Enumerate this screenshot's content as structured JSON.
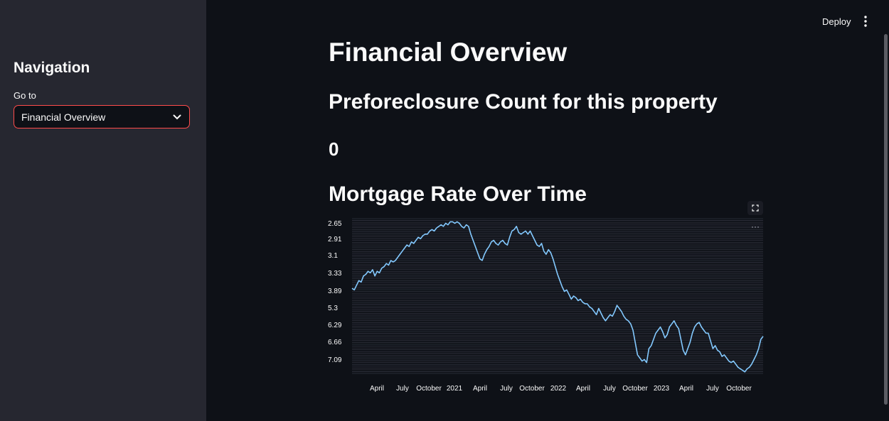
{
  "sidebar": {
    "title": "Navigation",
    "select_label": "Go to",
    "selected_value": "Financial Overview"
  },
  "toolbar": {
    "deploy_label": "Deploy",
    "menu_icon": "kebab-menu-icon"
  },
  "main": {
    "title": "Financial Overview",
    "preforeclosure_heading": "Preforeclosure Count for this property",
    "preforeclosure_count": "0",
    "chart_heading": "Mortgage Rate Over Time"
  },
  "colors": {
    "background": "#0e1117",
    "sidebar": "#262730",
    "accent": "#ff4b4b",
    "line": "#83c9ff"
  },
  "chart_data": {
    "type": "line",
    "title": "",
    "xlabel": "",
    "ylabel": "",
    "y_axis_note": "categorical y axis, top to bottom",
    "y_tick_labels": [
      "2.65",
      "2.91",
      "3.1",
      "3.33",
      "3.89",
      "5.3",
      "6.29",
      "6.66",
      "7.09"
    ],
    "x_tick_labels": [
      "April",
      "July",
      "October",
      "2021",
      "April",
      "July",
      "October",
      "2022",
      "April",
      "July",
      "October",
      "2023",
      "April",
      "July",
      "October"
    ],
    "x_range": [
      "2020-01",
      "2023-12"
    ],
    "grid": true,
    "series": [
      {
        "values": [
          0.45,
          0.46,
          0.43,
          0.4,
          0.41,
          0.37,
          0.36,
          0.34,
          0.35,
          0.33,
          0.37,
          0.34,
          0.35,
          0.32,
          0.31,
          0.29,
          0.3,
          0.27,
          0.28,
          0.27,
          0.25,
          0.23,
          0.21,
          0.19,
          0.17,
          0.18,
          0.15,
          0.16,
          0.14,
          0.12,
          0.13,
          0.11,
          0.1,
          0.1,
          0.08,
          0.07,
          0.08,
          0.06,
          0.05,
          0.04,
          0.05,
          0.03,
          0.04,
          0.02,
          0.02,
          0.03,
          0.02,
          0.03,
          0.05,
          0.06,
          0.04,
          0.05,
          0.1,
          0.14,
          0.18,
          0.22,
          0.26,
          0.27,
          0.23,
          0.2,
          0.18,
          0.15,
          0.14,
          0.16,
          0.17,
          0.15,
          0.14,
          0.16,
          0.17,
          0.12,
          0.08,
          0.07,
          0.05,
          0.09,
          0.1,
          0.09,
          0.08,
          0.1,
          0.08,
          0.11,
          0.14,
          0.17,
          0.18,
          0.16,
          0.21,
          0.23,
          0.2,
          0.22,
          0.26,
          0.31,
          0.36,
          0.4,
          0.44,
          0.47,
          0.46,
          0.49,
          0.52,
          0.5,
          0.51,
          0.53,
          0.52,
          0.54,
          0.55,
          0.55,
          0.57,
          0.58,
          0.6,
          0.62,
          0.58,
          0.61,
          0.64,
          0.66,
          0.64,
          0.62,
          0.63,
          0.6,
          0.56,
          0.58,
          0.6,
          0.63,
          0.65,
          0.66,
          0.68,
          0.72,
          0.8,
          0.88,
          0.9,
          0.92,
          0.91,
          0.93,
          0.84,
          0.82,
          0.78,
          0.74,
          0.72,
          0.7,
          0.73,
          0.77,
          0.75,
          0.7,
          0.68,
          0.66,
          0.69,
          0.71,
          0.78,
          0.85,
          0.88,
          0.84,
          0.8,
          0.74,
          0.7,
          0.68,
          0.67,
          0.7,
          0.72,
          0.74,
          0.74,
          0.79,
          0.84,
          0.82,
          0.85,
          0.86,
          0.89,
          0.88,
          0.9,
          0.92,
          0.93,
          0.92,
          0.94,
          0.96,
          0.97,
          0.98,
          0.99,
          0.97,
          0.96,
          0.94,
          0.91,
          0.88,
          0.84,
          0.78,
          0.76
        ]
      }
    ]
  }
}
